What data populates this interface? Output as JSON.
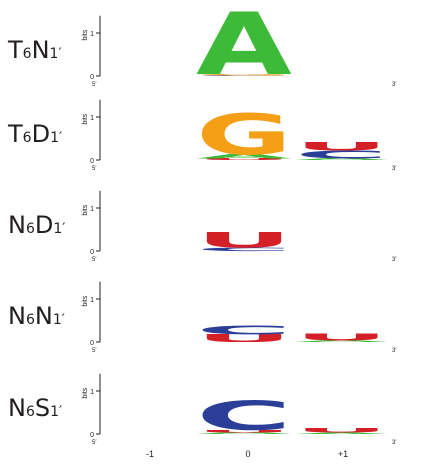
{
  "chart_data": {
    "type": "sequence-logo",
    "y_axis_label": "bits",
    "y_ticks": [
      "0",
      "1"
    ],
    "ylim": [
      0,
      1.4
    ],
    "end_labels": {
      "left": "5′",
      "right": "3′"
    },
    "positions": [
      "-1",
      "0",
      "+1"
    ],
    "colors": {
      "A": "#3dbb38",
      "G": "#f59f16",
      "C": "#2b3f99",
      "U": "#d51f26"
    },
    "panels": [
      {
        "label": {
          "main": "T",
          "sub1": "6",
          "mid": "N",
          "sub2": "1′"
        },
        "columns": {
          "0": [
            {
              "base": "C",
              "bits": 0.015
            },
            {
              "base": "G",
              "bits": 0.03
            },
            {
              "base": "A",
              "bits": 1.45
            }
          ],
          "+1": []
        }
      },
      {
        "label": {
          "main": "T",
          "sub1": "6",
          "mid": "D",
          "sub2": "1′"
        },
        "columns": {
          "0": [
            {
              "base": "U",
              "bits": 0.04
            },
            {
              "base": "A",
              "bits": 0.1
            },
            {
              "base": "G",
              "bits": 0.95
            }
          ],
          "+1": [
            {
              "base": "A",
              "bits": 0.04
            },
            {
              "base": "C",
              "bits": 0.18
            },
            {
              "base": "U",
              "bits": 0.2
            }
          ]
        }
      },
      {
        "label": {
          "main": "N",
          "sub1": "6",
          "mid": "D",
          "sub2": "1′"
        },
        "columns": {
          "0": [
            {
              "base": "C",
              "bits": 0.08
            },
            {
              "base": "U",
              "bits": 0.36
            }
          ],
          "+1": []
        }
      },
      {
        "label": {
          "main": "N",
          "sub1": "6",
          "mid": "N",
          "sub2": "1′"
        },
        "columns": {
          "0": [
            {
              "base": "U",
              "bits": 0.18
            },
            {
              "base": "C",
              "bits": 0.2
            }
          ],
          "+1": [
            {
              "base": "A",
              "bits": 0.04
            },
            {
              "base": "U",
              "bits": 0.16
            }
          ]
        }
      },
      {
        "label": {
          "main": "N",
          "sub1": "6",
          "mid": "S",
          "sub2": "1′"
        },
        "columns": {
          "0": [
            {
              "base": "A",
              "bits": 0.04
            },
            {
              "base": "U",
              "bits": 0.06
            },
            {
              "base": "C",
              "bits": 0.68
            }
          ],
          "+1": [
            {
              "base": "A",
              "bits": 0.03
            },
            {
              "base": "U",
              "bits": 0.1
            }
          ]
        }
      }
    ]
  }
}
